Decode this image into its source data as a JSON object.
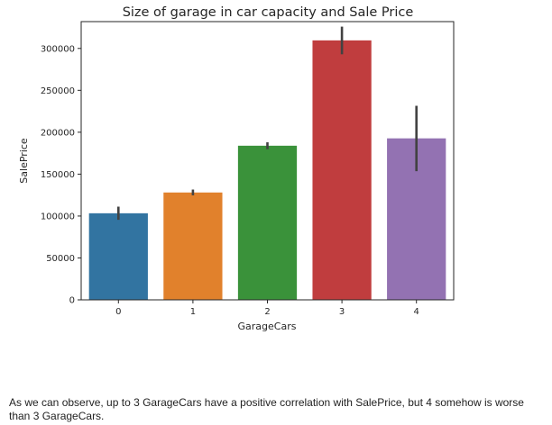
{
  "chart_data": {
    "type": "bar",
    "title": "Size of garage in car capacity and Sale Price",
    "xlabel": "GarageCars",
    "ylabel": "SalePrice",
    "categories": [
      "0",
      "1",
      "2",
      "3",
      "4"
    ],
    "values": [
      103300,
      128100,
      183900,
      309600,
      192700
    ],
    "error_low": [
      95500,
      124700,
      179800,
      293000,
      153500
    ],
    "error_high": [
      111200,
      131600,
      188000,
      326000,
      231500
    ],
    "ylim": [
      0,
      332000
    ],
    "yticks": [
      0,
      50000,
      100000,
      150000,
      200000,
      250000,
      300000
    ],
    "yticklabels": [
      "0",
      "50000",
      "100000",
      "150000",
      "200000",
      "250000",
      "300000"
    ],
    "colors": [
      "#3274a1",
      "#e1812c",
      "#3a923a",
      "#c03d3e",
      "#9372b2"
    ],
    "errorbar_color": "#424242",
    "grid": false,
    "legend": "none"
  },
  "caption": "As we can observe, up to 3 GarageCars have a positive correlation with SalePrice, but 4 somehow is worse than 3 GarageCars."
}
